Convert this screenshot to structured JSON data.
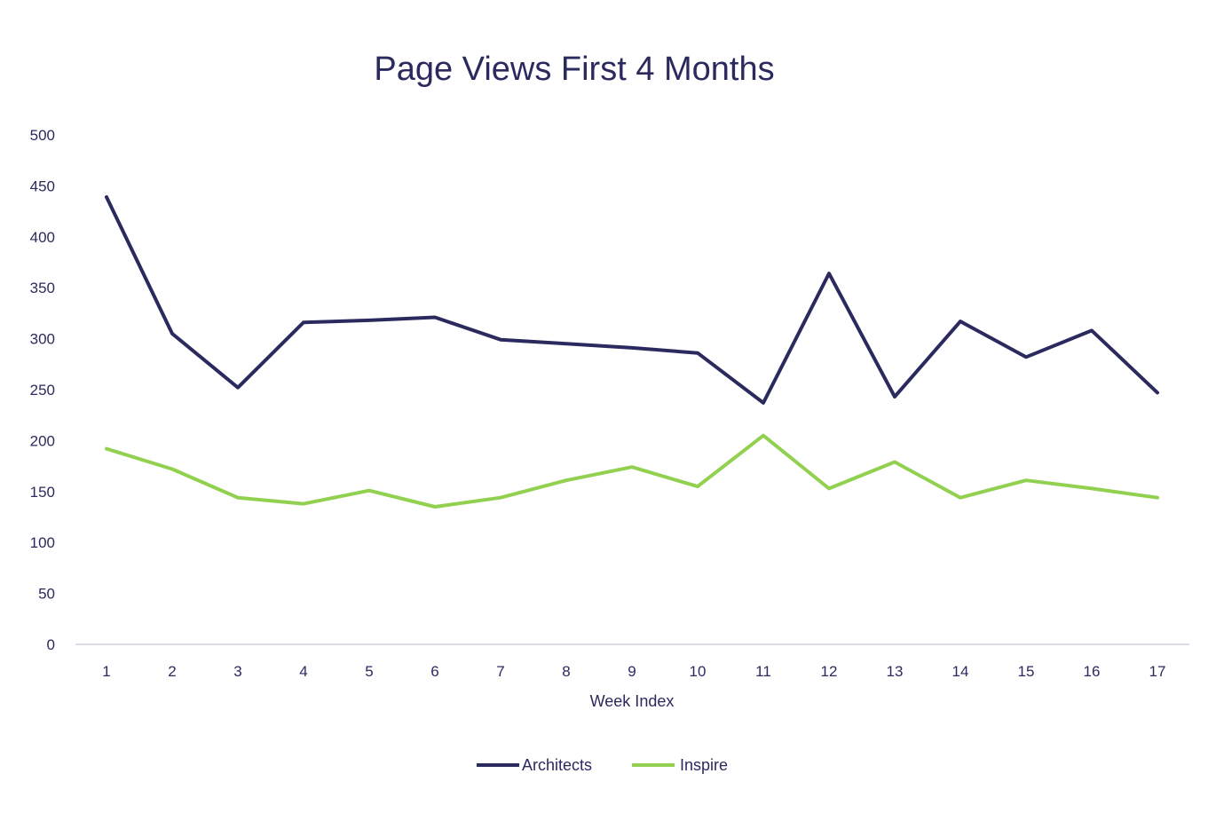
{
  "chart_data": {
    "type": "line",
    "title": "Page Views First 4 Months",
    "xlabel": "Week Index",
    "ylabel": "",
    "ylim": [
      0,
      500
    ],
    "yticks": [
      "0",
      "50",
      "100",
      "150",
      "200",
      "250",
      "300",
      "350",
      "400",
      "450",
      "500"
    ],
    "categories": [
      "1",
      "2",
      "3",
      "4",
      "5",
      "6",
      "7",
      "8",
      "9",
      "10",
      "11",
      "12",
      "13",
      "14",
      "15",
      "16",
      "17"
    ],
    "grid": false,
    "legend_position": "bottom",
    "series": [
      {
        "name": "Architects",
        "color": "#2b2a5e",
        "values": [
          439,
          305,
          252,
          316,
          318,
          321,
          299,
          295,
          291,
          286,
          237,
          364,
          243,
          317,
          282,
          308,
          247
        ]
      },
      {
        "name": "Inspire",
        "color": "#92d050",
        "values": [
          192,
          172,
          144,
          138,
          151,
          135,
          144,
          161,
          174,
          155,
          205,
          153,
          179,
          144,
          161,
          153,
          144
        ]
      }
    ]
  }
}
